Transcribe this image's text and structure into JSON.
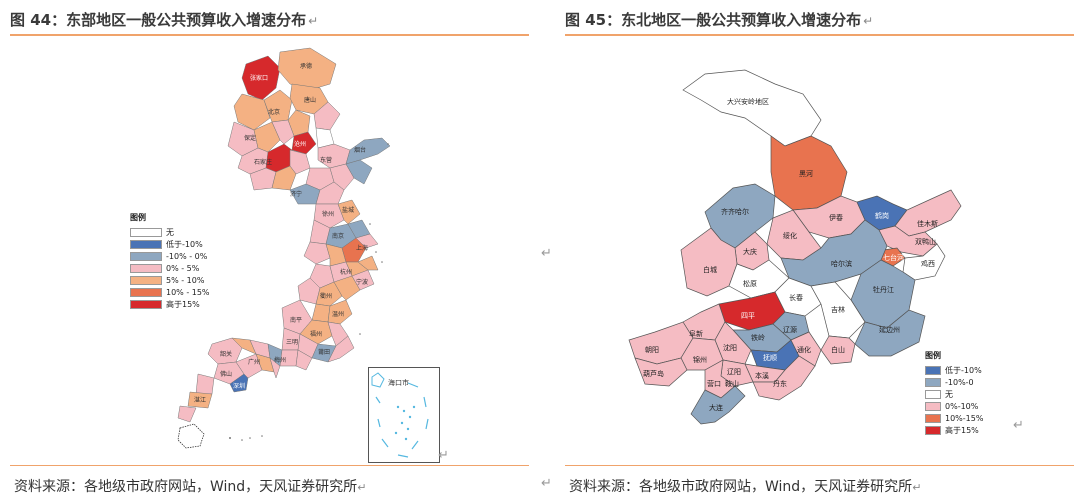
{
  "colors": {
    "none": "#ffffff",
    "below_neg10": "#4a73b5",
    "neg10_to_0": "#8ea7c0",
    "zero_to_5": "#f5bcc3",
    "five_to_10": "#f4b183",
    "ten_to_15": "#e8734f",
    "above_15": "#d6292c",
    "accent_rule": "#f0a36b"
  },
  "left": {
    "title": "图 44：东部地区一般公共预算收入增速分布",
    "source": "资料来源：各地级市政府网站，Wind，天风证券研究所",
    "legend_title": "图例",
    "legend": [
      {
        "label": "无",
        "color": "#ffffff"
      },
      {
        "label": "低于-10%",
        "color": "#4a73b5"
      },
      {
        "label": "-10% - 0%",
        "color": "#8ea7c0"
      },
      {
        "label": "0% - 5%",
        "color": "#f5bcc3"
      },
      {
        "label": "5% - 10%",
        "color": "#f4b183"
      },
      {
        "label": "10% - 15%",
        "color": "#e8734f"
      },
      {
        "label": "高于15%",
        "color": "#d6292c"
      }
    ],
    "inset_label": "海口市"
  },
  "right": {
    "title": "图 45：东北地区一般公共预算收入增速分布",
    "source": "资料来源：各地级市政府网站，Wind，天风证券研究所",
    "legend_title": "图例",
    "legend": [
      {
        "label": "低于-10%",
        "color": "#4a73b5"
      },
      {
        "label": "-10%-0",
        "color": "#8ea7c0"
      },
      {
        "label": "无",
        "color": "#ffffff"
      },
      {
        "label": "0%-10%",
        "color": "#f5bcc3"
      },
      {
        "label": "10%-15%",
        "color": "#e8734f"
      },
      {
        "label": "高于15%",
        "color": "#d6292c"
      }
    ],
    "regions": [
      {
        "name": "大兴安岭地区",
        "color": "#ffffff"
      },
      {
        "name": "黑河",
        "color": "#e8734f"
      },
      {
        "name": "齐齐哈尔",
        "color": "#8ea7c0"
      },
      {
        "name": "伊春",
        "color": "#f5bcc3"
      },
      {
        "name": "鹤岗",
        "color": "#4a73b5"
      },
      {
        "name": "佳木斯",
        "color": "#f5bcc3"
      },
      {
        "name": "绥化",
        "color": "#f5bcc3"
      },
      {
        "name": "大庆",
        "color": "#f5bcc3"
      },
      {
        "name": "双鸭山",
        "color": "#f5bcc3"
      },
      {
        "name": "七台河",
        "color": "#e8734f"
      },
      {
        "name": "哈尔滨",
        "color": "#8ea7c0"
      },
      {
        "name": "鸡西",
        "color": "#ffffff"
      },
      {
        "name": "白城",
        "color": "#f5bcc3"
      },
      {
        "name": "牡丹江",
        "color": "#8ea7c0"
      },
      {
        "name": "松原",
        "color": "#ffffff"
      },
      {
        "name": "长春",
        "color": "#ffffff"
      },
      {
        "name": "吉林",
        "color": "#ffffff"
      },
      {
        "name": "四平",
        "color": "#d6292c"
      },
      {
        "name": "延边州",
        "color": "#8ea7c0"
      },
      {
        "name": "辽源",
        "color": "#8ea7c0"
      },
      {
        "name": "铁岭",
        "color": "#8ea7c0"
      },
      {
        "name": "白山",
        "color": "#f5bcc3"
      },
      {
        "name": "抚顺",
        "color": "#4a73b5"
      },
      {
        "name": "通化",
        "color": "#f5bcc3"
      },
      {
        "name": "阜新",
        "color": "#f5bcc3"
      },
      {
        "name": "沈阳",
        "color": "#f5bcc3"
      },
      {
        "name": "朝阳",
        "color": "#f5bcc3"
      },
      {
        "name": "锦州",
        "color": "#f5bcc3"
      },
      {
        "name": "本溪",
        "color": "#f5bcc3"
      },
      {
        "name": "辽阳",
        "color": "#f5bcc3"
      },
      {
        "name": "鞍山",
        "color": "#f5bcc3"
      },
      {
        "name": "葫芦岛",
        "color": "#f5bcc3"
      },
      {
        "name": "营口",
        "color": "#f5bcc3"
      },
      {
        "name": "丹东",
        "color": "#f5bcc3"
      },
      {
        "name": "大连",
        "color": "#8ea7c0"
      }
    ]
  }
}
